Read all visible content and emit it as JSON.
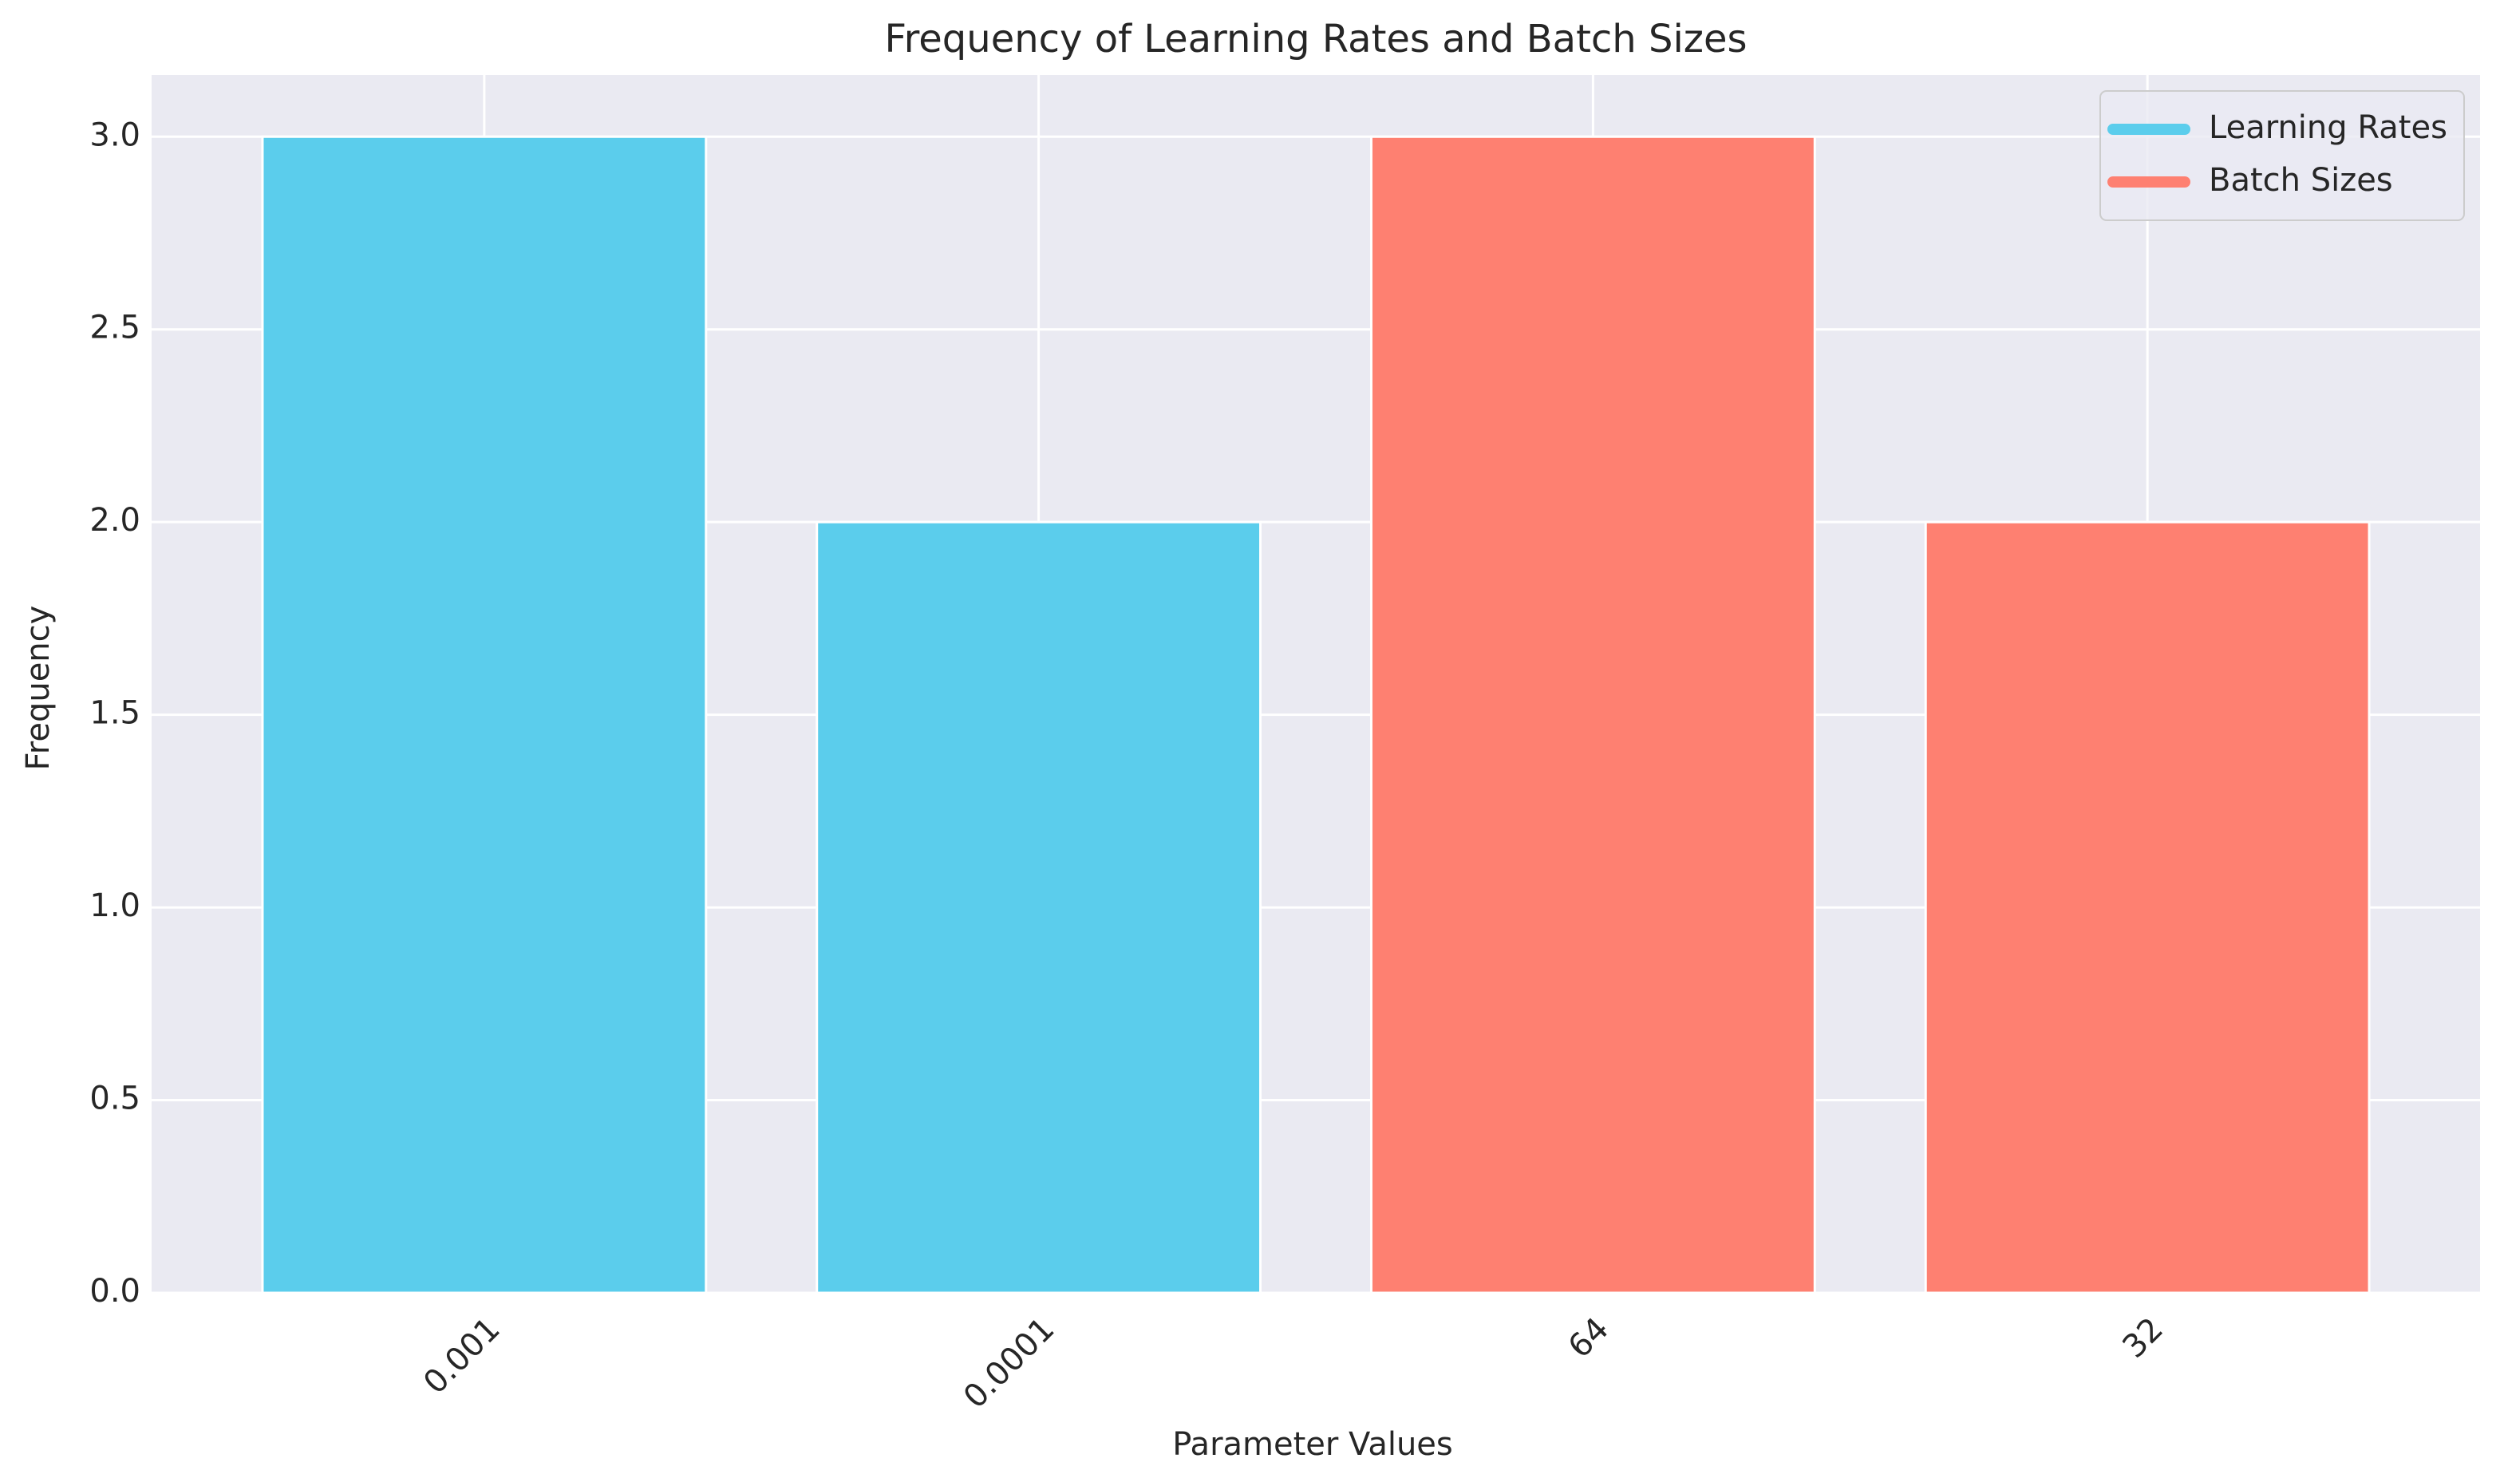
{
  "chart_data": {
    "type": "bar",
    "title": "Frequency of Learning Rates and Batch Sizes",
    "x_label": "Parameter Values",
    "y_label": "Frequency",
    "categories": [
      "0.001",
      "0.0001",
      "64",
      "32"
    ],
    "series": [
      {
        "name": "Learning Rates",
        "color": "#5bcdec",
        "values": [
          3,
          2,
          null,
          null
        ]
      },
      {
        "name": "Batch Sizes",
        "color": "#fe8071",
        "values": [
          null,
          null,
          3,
          2
        ]
      }
    ],
    "ylim": [
      0,
      3.16
    ],
    "yticks": [
      {
        "value": 0,
        "label": "0.0"
      },
      0.5,
      {
        "value": 1,
        "label": "1.0"
      },
      1.5,
      {
        "value": 2,
        "label": "2.0"
      },
      2.5,
      {
        "value": 3,
        "label": "3.0"
      }
    ],
    "grid": true,
    "legend": "upper right"
  }
}
